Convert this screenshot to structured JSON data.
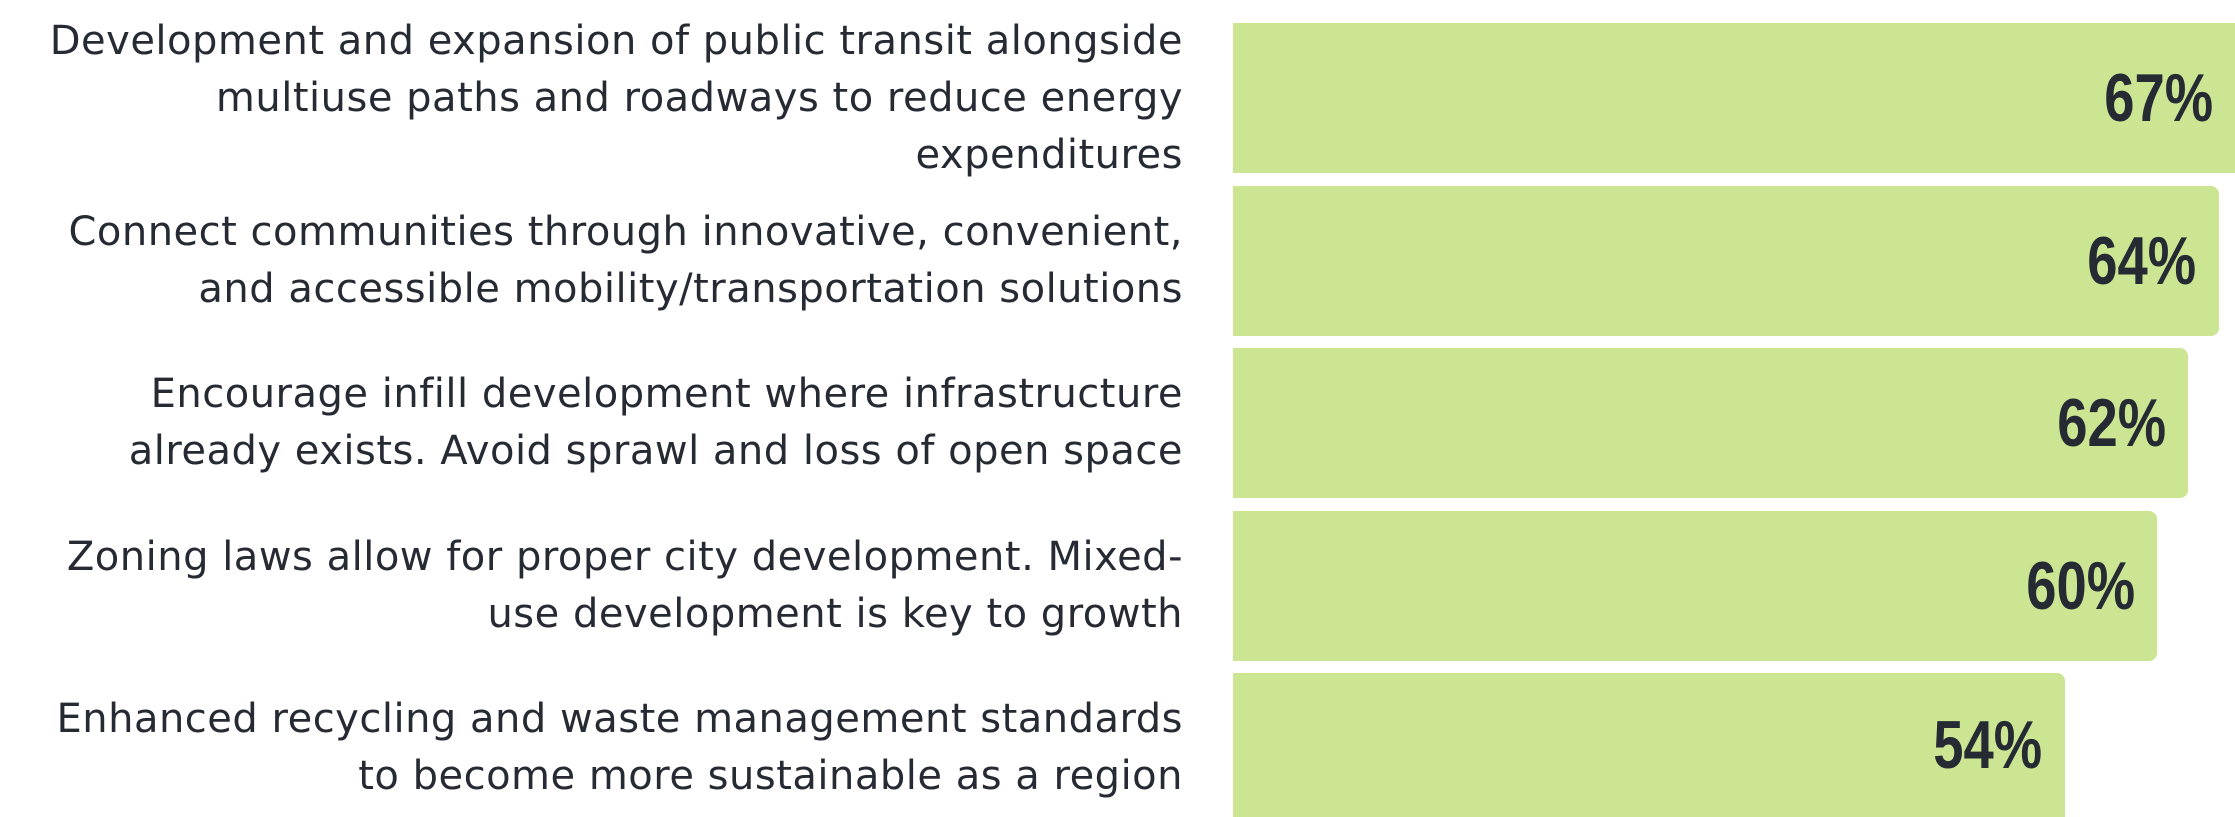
{
  "chart_data": {
    "type": "bar",
    "orientation": "horizontal",
    "categories": [
      "Development and expansion of public transit alongside multiuse paths and roadways to reduce energy expenditures",
      "Connect communities through innovative, convenient, and accessible mobility/transportation solutions",
      "Encourage infill development where infrastructure already exists. Avoid sprawl and loss of open space",
      "Zoning laws allow for proper city development. Mixed-use development is key to growth",
      "Enhanced recycling and waste management standards to become more sustainable as a region"
    ],
    "values": [
      67,
      64,
      62,
      60,
      54
    ],
    "value_labels": [
      "67%",
      "64%",
      "62%",
      "60%",
      "54%"
    ],
    "color": "#cbe592"
  }
}
